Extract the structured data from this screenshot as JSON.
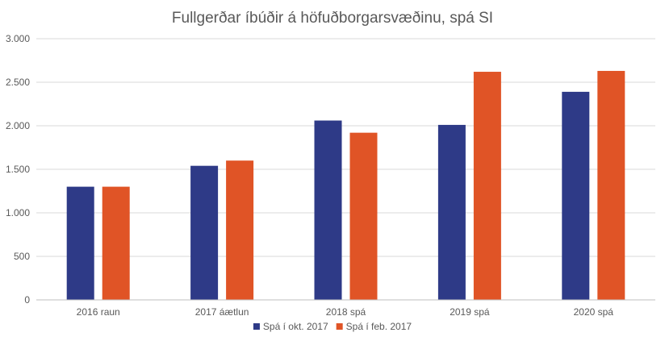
{
  "chart_data": {
    "type": "bar",
    "title": "Fullgerðar íbúðir á höfuðborgarsvæðinu, spá SI",
    "xlabel": "",
    "ylabel": "",
    "categories": [
      "2016 raun",
      "2017 áætlun",
      "2018 spá",
      "2019 spá",
      "2020 spá"
    ],
    "series": [
      {
        "name": "Spá í okt. 2017",
        "color": "#2e3a87",
        "values": [
          1300,
          1540,
          2060,
          2010,
          2390
        ]
      },
      {
        "name": "Spá í feb. 2017",
        "color": "#e05426",
        "values": [
          1300,
          1600,
          1920,
          2620,
          2630
        ]
      }
    ],
    "ylim": [
      0,
      3000
    ],
    "yticks": [
      0,
      500,
      1000,
      1500,
      2000,
      2500,
      3000
    ],
    "ytick_labels": [
      "0",
      "500",
      "1.000",
      "1.500",
      "2.000",
      "2.500",
      "3.000"
    ],
    "grid": true,
    "legend_position": "bottom"
  }
}
